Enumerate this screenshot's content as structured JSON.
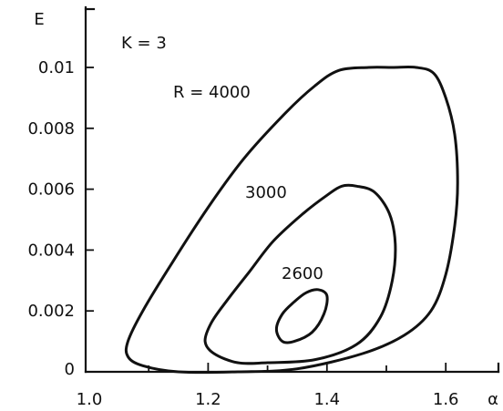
{
  "chart_data": {
    "type": "line",
    "xlabel": "α",
    "ylabel": "E",
    "xlim": [
      1.0,
      1.65
    ],
    "ylim": [
      0,
      0.0105
    ],
    "x_ticks": [
      1.0,
      1.2,
      1.4,
      1.6
    ],
    "x_tick_labels": [
      "1.0",
      "1.2",
      "1.4",
      "1.6"
    ],
    "y_ticks": [
      0,
      0.002,
      0.004,
      0.006,
      0.008,
      0.01
    ],
    "y_tick_labels": [
      "0",
      "0.002",
      "0.004",
      "0.006",
      "0.008",
      "0.01"
    ],
    "grid": false,
    "annotations": {
      "k_label": "K = 3",
      "r4000_label": "R = 4000",
      "r3000_label": "3000",
      "r2600_label": "2600"
    },
    "series": [
      {
        "name": "R = 4000",
        "closed": true,
        "points": [
          [
            1.55,
            0.01
          ],
          [
            1.58,
            0.0098
          ],
          [
            1.6,
            0.009
          ],
          [
            1.615,
            0.0078
          ],
          [
            1.62,
            0.0062
          ],
          [
            1.615,
            0.0048
          ],
          [
            1.6,
            0.0032
          ],
          [
            1.575,
            0.002
          ],
          [
            1.53,
            0.0012
          ],
          [
            1.46,
            0.0006
          ],
          [
            1.35,
            0.0001
          ],
          [
            1.25,
            0.0
          ],
          [
            1.15,
            0.0
          ],
          [
            1.09,
            0.0002
          ],
          [
            1.065,
            0.0005
          ],
          [
            1.065,
            0.001
          ],
          [
            1.09,
            0.002
          ],
          [
            1.14,
            0.0036
          ],
          [
            1.2,
            0.0054
          ],
          [
            1.26,
            0.007
          ],
          [
            1.33,
            0.0085
          ],
          [
            1.38,
            0.0094
          ],
          [
            1.42,
            0.0099
          ],
          [
            1.47,
            0.01
          ],
          [
            1.51,
            0.01
          ]
        ]
      },
      {
        "name": "3000",
        "closed": true,
        "points": [
          [
            1.45,
            0.0061
          ],
          [
            1.48,
            0.0059
          ],
          [
            1.505,
            0.0052
          ],
          [
            1.515,
            0.0042
          ],
          [
            1.51,
            0.003
          ],
          [
            1.49,
            0.0018
          ],
          [
            1.45,
            0.0009
          ],
          [
            1.38,
            0.0004
          ],
          [
            1.3,
            0.0003
          ],
          [
            1.25,
            0.0003
          ],
          [
            1.21,
            0.0006
          ],
          [
            1.195,
            0.001
          ],
          [
            1.205,
            0.0016
          ],
          [
            1.23,
            0.0023
          ],
          [
            1.27,
            0.0033
          ],
          [
            1.31,
            0.0043
          ],
          [
            1.36,
            0.0052
          ],
          [
            1.4,
            0.0058
          ],
          [
            1.425,
            0.0061
          ]
        ]
      },
      {
        "name": "2600",
        "closed": true,
        "points": [
          [
            1.385,
            0.0027
          ],
          [
            1.4,
            0.0025
          ],
          [
            1.395,
            0.0019
          ],
          [
            1.375,
            0.0013
          ],
          [
            1.345,
            0.001
          ],
          [
            1.325,
            0.001
          ],
          [
            1.315,
            0.0014
          ],
          [
            1.325,
            0.0019
          ],
          [
            1.345,
            0.0023
          ],
          [
            1.365,
            0.0026
          ]
        ]
      }
    ]
  }
}
